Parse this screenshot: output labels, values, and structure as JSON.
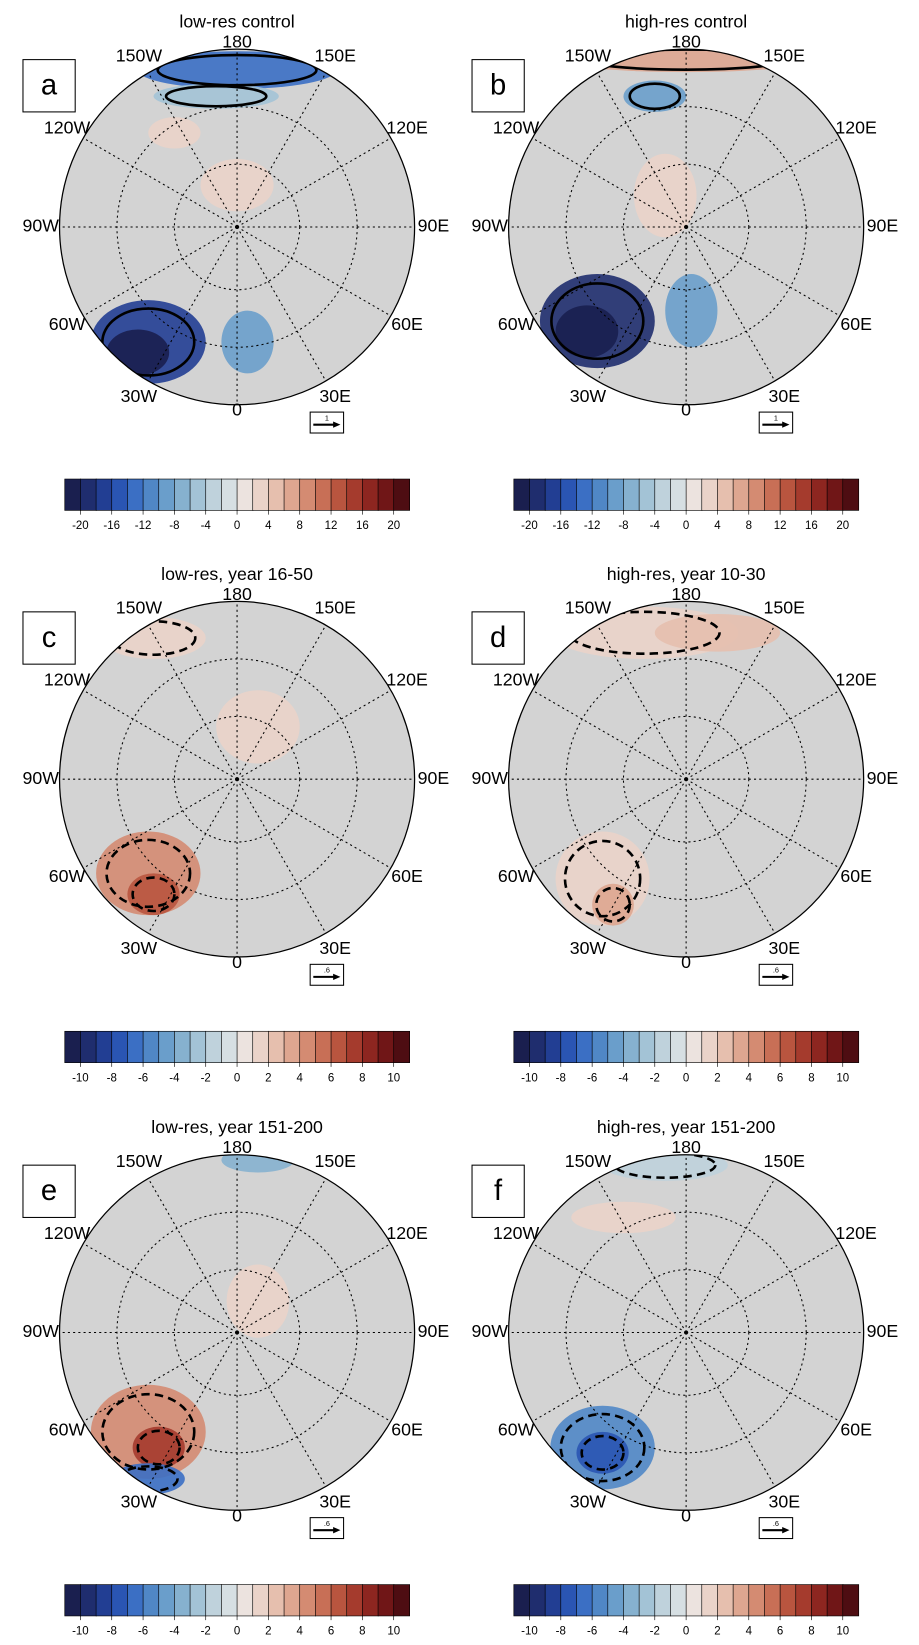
{
  "map": {
    "lon_labels": [
      "180",
      "150E",
      "120E",
      "90E",
      "60E",
      "30E",
      "0",
      "30W",
      "60W",
      "90W",
      "120W",
      "150W"
    ]
  },
  "colorbar_colors": [
    "#1a1f4f",
    "#1f2d6e",
    "#223e93",
    "#2a55b3",
    "#3b6fc4",
    "#5087c6",
    "#6a9ecb",
    "#86b1cf",
    "#a3c3d6",
    "#bfd2dc",
    "#d6dfe3",
    "#ece3df",
    "#ead3c9",
    "#e6bfae",
    "#dea690",
    "#d48b72",
    "#c86f56",
    "#b9553f",
    "#a53b2d",
    "#8d2620",
    "#701617",
    "#4e0d12"
  ],
  "panels": [
    {
      "letter": "a",
      "title": "low-res control",
      "vector_label": "1",
      "clim": [
        -22,
        22
      ],
      "colorbar_ticks": [
        -20,
        -16,
        -12,
        -8,
        -4,
        0,
        4,
        8,
        12,
        16,
        20
      ]
    },
    {
      "letter": "b",
      "title": "high-res control",
      "vector_label": "1",
      "clim": [
        -22,
        22
      ],
      "colorbar_ticks": [
        -20,
        -16,
        -12,
        -8,
        -4,
        0,
        4,
        8,
        12,
        16,
        20
      ]
    },
    {
      "letter": "c",
      "title": "low-res, year 16-50",
      "vector_label": ".6",
      "clim": [
        -11,
        11
      ],
      "colorbar_ticks": [
        -10,
        -8,
        -6,
        -4,
        -2,
        0,
        2,
        4,
        6,
        8,
        10
      ]
    },
    {
      "letter": "d",
      "title": "high-res, year 10-30",
      "vector_label": ".6",
      "clim": [
        -11,
        11
      ],
      "colorbar_ticks": [
        -10,
        -8,
        -6,
        -4,
        -2,
        0,
        2,
        4,
        6,
        8,
        10
      ]
    },
    {
      "letter": "e",
      "title": "low-res, year 151-200",
      "vector_label": ".6",
      "clim": [
        -11,
        11
      ],
      "colorbar_ticks": [
        -10,
        -8,
        -6,
        -4,
        -2,
        0,
        2,
        4,
        6,
        8,
        10
      ]
    },
    {
      "letter": "f",
      "title": "high-res, year 151-200",
      "vector_label": ".6",
      "clim": [
        -11,
        11
      ],
      "colorbar_ticks": [
        -10,
        -8,
        -6,
        -4,
        -2,
        0,
        2,
        4,
        6,
        8,
        10
      ]
    }
  ]
}
